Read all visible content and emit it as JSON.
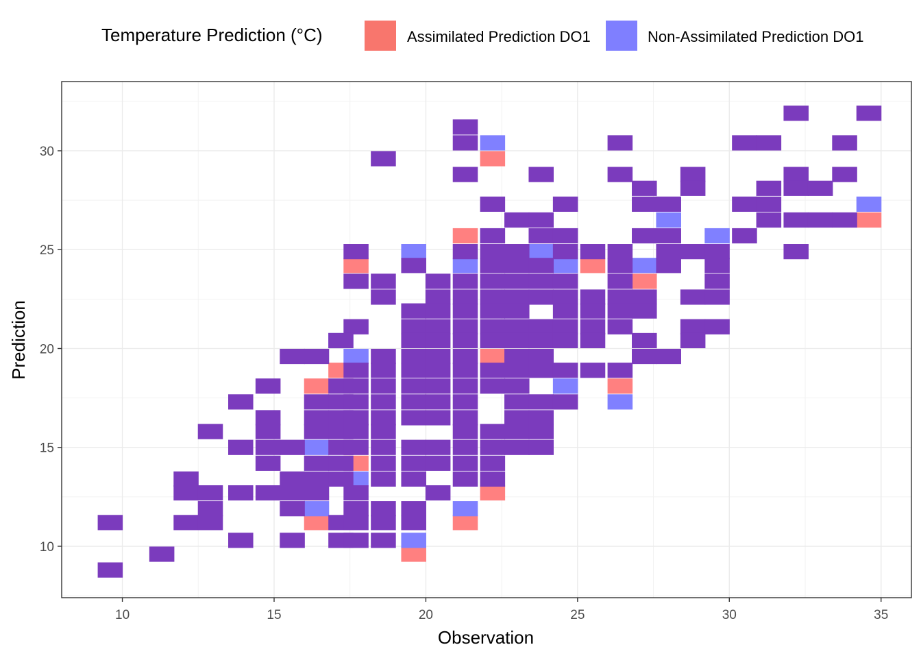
{
  "legend": {
    "title": "Temperature Prediction (°C)",
    "items": [
      {
        "label": "Assimilated Prediction DO1",
        "color": "#f8766d"
      },
      {
        "label": "Non-Assimilated Prediction DO1",
        "color": "#7f7fff"
      }
    ]
  },
  "chart_data": {
    "type": "heatmap",
    "xlabel": "Observation",
    "ylabel": "Prediction",
    "xlim": [
      8,
      36
    ],
    "ylim": [
      7.4,
      33.5
    ],
    "xticks": [
      10,
      15,
      20,
      25,
      30,
      35
    ],
    "yticks": [
      10,
      15,
      20,
      25,
      30
    ],
    "grid": true,
    "legend_position": "top",
    "bin_width_x": 0.825,
    "bin_height_y": 0.77,
    "colors": {
      "overlap": "#7b3bbd",
      "assimilated": "#ff8080",
      "non_assimilated": "#8080ff"
    },
    "series": [
      {
        "name": "Assimilated Prediction DO1",
        "status": "assimilated",
        "points": [
          [
            22.2,
            29.6
          ],
          [
            21.3,
            25.7
          ],
          [
            17.7,
            24.2
          ],
          [
            25.5,
            24.2
          ],
          [
            27.2,
            23.4
          ],
          [
            22.2,
            19.6
          ],
          [
            17.2,
            18.9
          ],
          [
            16.4,
            18.1
          ],
          [
            26.4,
            18.1
          ],
          [
            34.6,
            26.5
          ],
          [
            17.7,
            14.2
          ],
          [
            22.2,
            12.7
          ],
          [
            16.4,
            11.2
          ],
          [
            21.3,
            11.2
          ],
          [
            19.6,
            9.6
          ]
        ]
      },
      {
        "name": "Non-Assimilated Prediction DO1",
        "status": "non_assimilated",
        "points": [
          [
            22.2,
            30.4
          ],
          [
            19.6,
            24.9
          ],
          [
            21.3,
            24.2
          ],
          [
            23.8,
            24.9
          ],
          [
            24.6,
            24.2
          ],
          [
            27.2,
            24.2
          ],
          [
            28.0,
            26.5
          ],
          [
            29.6,
            25.7
          ],
          [
            34.6,
            27.3
          ],
          [
            17.2,
            20.4
          ],
          [
            17.7,
            19.6
          ],
          [
            24.6,
            18.1
          ],
          [
            26.4,
            17.3
          ],
          [
            16.4,
            15.0
          ],
          [
            17.7,
            13.4
          ],
          [
            16.4,
            11.9
          ],
          [
            21.3,
            11.9
          ],
          [
            19.6,
            10.3
          ]
        ]
      },
      {
        "name": "",
        "status": "overlap",
        "points": [
          [
            21.3,
            31.2
          ],
          [
            32.2,
            31.9
          ],
          [
            34.6,
            31.9
          ],
          [
            21.3,
            30.4
          ],
          [
            26.4,
            30.4
          ],
          [
            30.5,
            30.4
          ],
          [
            31.3,
            30.4
          ],
          [
            33.8,
            30.4
          ],
          [
            18.6,
            29.6
          ],
          [
            21.3,
            28.8
          ],
          [
            23.8,
            28.8
          ],
          [
            26.4,
            28.8
          ],
          [
            28.8,
            28.8
          ],
          [
            32.2,
            28.8
          ],
          [
            33.8,
            28.8
          ],
          [
            27.2,
            28.1
          ],
          [
            28.8,
            28.1
          ],
          [
            31.3,
            28.1
          ],
          [
            32.2,
            28.1
          ],
          [
            33.0,
            28.1
          ],
          [
            22.2,
            27.3
          ],
          [
            24.6,
            27.3
          ],
          [
            27.2,
            27.3
          ],
          [
            28.0,
            27.3
          ],
          [
            30.5,
            27.3
          ],
          [
            31.3,
            27.3
          ],
          [
            23.0,
            26.5
          ],
          [
            23.8,
            26.5
          ],
          [
            31.3,
            26.5
          ],
          [
            32.2,
            26.5
          ],
          [
            33.0,
            26.5
          ],
          [
            33.8,
            26.5
          ],
          [
            22.2,
            25.7
          ],
          [
            23.8,
            25.7
          ],
          [
            24.6,
            25.7
          ],
          [
            27.2,
            25.7
          ],
          [
            28.0,
            25.7
          ],
          [
            30.5,
            25.7
          ],
          [
            17.7,
            24.9
          ],
          [
            21.3,
            24.9
          ],
          [
            22.2,
            24.9
          ],
          [
            23.0,
            24.9
          ],
          [
            24.6,
            24.9
          ],
          [
            25.5,
            24.9
          ],
          [
            26.4,
            24.9
          ],
          [
            28.0,
            24.9
          ],
          [
            28.8,
            24.9
          ],
          [
            29.6,
            24.9
          ],
          [
            32.2,
            24.9
          ],
          [
            19.6,
            24.2
          ],
          [
            22.2,
            24.2
          ],
          [
            23.0,
            24.2
          ],
          [
            23.8,
            24.2
          ],
          [
            26.4,
            24.2
          ],
          [
            28.0,
            24.2
          ],
          [
            29.6,
            24.2
          ],
          [
            17.7,
            23.4
          ],
          [
            18.6,
            23.4
          ],
          [
            20.4,
            23.4
          ],
          [
            21.3,
            23.4
          ],
          [
            22.2,
            23.4
          ],
          [
            23.0,
            23.4
          ],
          [
            23.8,
            23.4
          ],
          [
            24.6,
            23.4
          ],
          [
            26.4,
            23.4
          ],
          [
            29.6,
            23.4
          ],
          [
            18.6,
            22.6
          ],
          [
            20.4,
            22.6
          ],
          [
            21.3,
            22.6
          ],
          [
            22.2,
            22.6
          ],
          [
            23.0,
            22.6
          ],
          [
            23.8,
            22.6
          ],
          [
            24.6,
            22.6
          ],
          [
            25.5,
            22.6
          ],
          [
            26.4,
            22.6
          ],
          [
            27.2,
            22.6
          ],
          [
            28.8,
            22.6
          ],
          [
            29.6,
            22.6
          ],
          [
            19.6,
            21.9
          ],
          [
            20.4,
            21.9
          ],
          [
            21.3,
            21.9
          ],
          [
            22.2,
            21.9
          ],
          [
            23.0,
            21.9
          ],
          [
            24.6,
            21.9
          ],
          [
            25.5,
            21.9
          ],
          [
            26.4,
            21.9
          ],
          [
            27.2,
            21.9
          ],
          [
            19.6,
            21.1
          ],
          [
            20.4,
            21.1
          ],
          [
            21.3,
            21.1
          ],
          [
            22.2,
            21.1
          ],
          [
            23.0,
            21.1
          ],
          [
            23.8,
            21.1
          ],
          [
            24.6,
            21.1
          ],
          [
            25.5,
            21.1
          ],
          [
            26.4,
            21.1
          ],
          [
            28.8,
            21.1
          ],
          [
            29.6,
            21.1
          ],
          [
            17.7,
            21.1
          ],
          [
            17.2,
            20.4
          ],
          [
            19.6,
            20.4
          ],
          [
            20.4,
            20.4
          ],
          [
            21.3,
            20.4
          ],
          [
            22.2,
            20.4
          ],
          [
            23.0,
            20.4
          ],
          [
            23.8,
            20.4
          ],
          [
            24.6,
            20.4
          ],
          [
            25.5,
            20.4
          ],
          [
            27.2,
            20.4
          ],
          [
            28.8,
            20.4
          ],
          [
            15.6,
            19.6
          ],
          [
            16.4,
            19.6
          ],
          [
            18.6,
            19.6
          ],
          [
            19.6,
            19.6
          ],
          [
            20.4,
            19.6
          ],
          [
            21.3,
            19.6
          ],
          [
            23.0,
            19.6
          ],
          [
            23.8,
            19.6
          ],
          [
            27.2,
            19.6
          ],
          [
            28.0,
            19.6
          ],
          [
            17.7,
            18.9
          ],
          [
            18.6,
            18.9
          ],
          [
            19.6,
            18.9
          ],
          [
            20.4,
            18.9
          ],
          [
            21.3,
            18.9
          ],
          [
            22.2,
            18.9
          ],
          [
            23.0,
            18.9
          ],
          [
            23.8,
            18.9
          ],
          [
            24.6,
            18.9
          ],
          [
            25.5,
            18.9
          ],
          [
            26.4,
            18.9
          ],
          [
            17.2,
            18.1
          ],
          [
            17.7,
            18.1
          ],
          [
            18.6,
            18.1
          ],
          [
            19.6,
            18.1
          ],
          [
            20.4,
            18.1
          ],
          [
            21.3,
            18.1
          ],
          [
            22.2,
            18.1
          ],
          [
            23.0,
            18.1
          ],
          [
            13.9,
            17.3
          ],
          [
            16.4,
            17.3
          ],
          [
            17.2,
            17.3
          ],
          [
            17.7,
            17.3
          ],
          [
            18.6,
            17.3
          ],
          [
            19.6,
            17.3
          ],
          [
            20.4,
            17.3
          ],
          [
            21.3,
            17.3
          ],
          [
            23.0,
            17.3
          ],
          [
            23.8,
            17.3
          ],
          [
            24.6,
            17.3
          ],
          [
            14.8,
            18.1
          ],
          [
            14.8,
            16.5
          ],
          [
            16.4,
            16.5
          ],
          [
            17.2,
            16.5
          ],
          [
            17.7,
            16.5
          ],
          [
            18.6,
            16.5
          ],
          [
            19.6,
            16.5
          ],
          [
            20.4,
            16.5
          ],
          [
            21.3,
            16.5
          ],
          [
            23.0,
            16.5
          ],
          [
            23.8,
            16.5
          ],
          [
            12.9,
            15.8
          ],
          [
            14.8,
            15.8
          ],
          [
            16.4,
            15.8
          ],
          [
            17.2,
            15.8
          ],
          [
            17.7,
            15.8
          ],
          [
            18.6,
            15.8
          ],
          [
            21.3,
            15.8
          ],
          [
            22.2,
            15.8
          ],
          [
            23.0,
            15.8
          ],
          [
            23.8,
            15.8
          ],
          [
            13.9,
            15.0
          ],
          [
            14.8,
            15.0
          ],
          [
            15.6,
            15.0
          ],
          [
            17.2,
            15.0
          ],
          [
            17.7,
            15.0
          ],
          [
            18.6,
            15.0
          ],
          [
            19.6,
            15.0
          ],
          [
            20.4,
            15.0
          ],
          [
            21.3,
            15.0
          ],
          [
            22.2,
            15.0
          ],
          [
            23.0,
            15.0
          ],
          [
            23.8,
            15.0
          ],
          [
            14.8,
            14.2
          ],
          [
            16.4,
            14.2
          ],
          [
            17.2,
            14.2
          ],
          [
            18.6,
            14.2
          ],
          [
            19.6,
            14.2
          ],
          [
            20.4,
            14.2
          ],
          [
            21.3,
            14.2
          ],
          [
            22.2,
            14.2
          ],
          [
            12.1,
            13.4
          ],
          [
            15.6,
            13.4
          ],
          [
            16.4,
            13.4
          ],
          [
            17.2,
            13.4
          ],
          [
            18.6,
            13.4
          ],
          [
            19.6,
            13.4
          ],
          [
            21.3,
            13.4
          ],
          [
            22.2,
            13.4
          ],
          [
            12.1,
            12.7
          ],
          [
            12.9,
            12.7
          ],
          [
            13.9,
            12.7
          ],
          [
            14.8,
            12.7
          ],
          [
            15.6,
            12.7
          ],
          [
            16.4,
            12.7
          ],
          [
            17.7,
            12.7
          ],
          [
            20.4,
            12.7
          ],
          [
            12.9,
            11.9
          ],
          [
            15.6,
            11.9
          ],
          [
            17.7,
            11.9
          ],
          [
            18.6,
            11.9
          ],
          [
            19.6,
            11.9
          ],
          [
            9.6,
            11.2
          ],
          [
            12.1,
            11.2
          ],
          [
            12.9,
            11.2
          ],
          [
            17.2,
            11.2
          ],
          [
            17.7,
            11.2
          ],
          [
            18.6,
            11.2
          ],
          [
            19.6,
            11.2
          ],
          [
            13.9,
            10.3
          ],
          [
            15.6,
            10.3
          ],
          [
            17.2,
            10.3
          ],
          [
            17.7,
            10.3
          ],
          [
            18.6,
            10.3
          ],
          [
            11.3,
            9.6
          ],
          [
            9.6,
            8.8
          ]
        ]
      }
    ]
  }
}
